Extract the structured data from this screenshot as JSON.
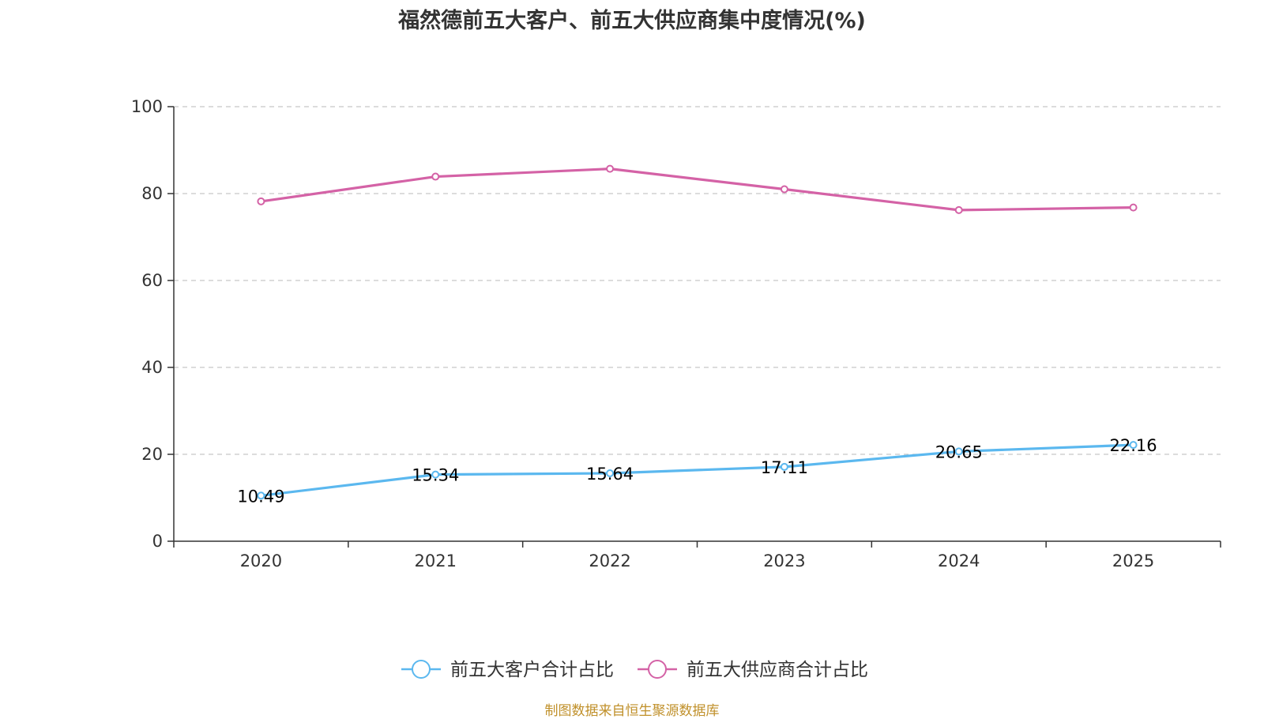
{
  "chart_data": {
    "type": "line",
    "title": "福然德前五大客户、前五大供应商集中度情况(%)",
    "categories": [
      "2020",
      "2021",
      "2022",
      "2023",
      "2024",
      "2025"
    ],
    "ylim": [
      0,
      100
    ],
    "yticks": [
      "0",
      "20",
      "40",
      "60",
      "80",
      "100"
    ],
    "grid": true,
    "legend_position": "bottom",
    "series": [
      {
        "name": "前五大客户合计占比",
        "color": "#5bb8ef",
        "values": [
          10.49,
          15.34,
          15.64,
          17.11,
          20.65,
          22.16
        ],
        "labels": [
          "10.49",
          "15.34",
          "15.64",
          "17.11",
          "20.65",
          "22.16"
        ]
      },
      {
        "name": "前五大供应商合计占比",
        "color": "#d462a6",
        "values": [
          78.2,
          83.9,
          85.7,
          81.0,
          76.2,
          76.8
        ]
      }
    ]
  },
  "source": "制图数据来自恒生聚源数据库"
}
